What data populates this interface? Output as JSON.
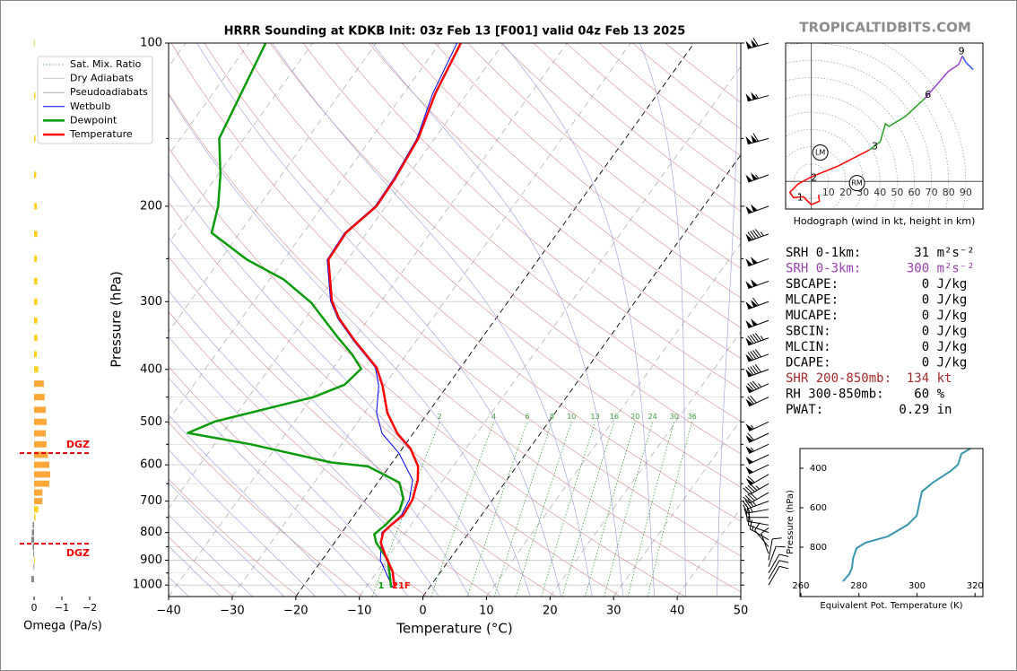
{
  "watermark": "TROPICALTIDBITS.COM",
  "stats": {
    "rows": [
      {
        "text": "SRH 0-1km:       31 m²s⁻²",
        "color": "#000000"
      },
      {
        "text": "SRH 0-3km:      300 m²s⁻²",
        "color": "#9b3fb0"
      },
      {
        "text": "SBCAPE:           0 J/kg",
        "color": "#000000"
      },
      {
        "text": "MLCAPE:           0 J/kg",
        "color": "#000000"
      },
      {
        "text": "MUCAPE:           0 J/kg",
        "color": "#000000"
      },
      {
        "text": "SBCIN:            0 J/kg",
        "color": "#000000"
      },
      {
        "text": "MLCIN:            0 J/kg",
        "color": "#000000"
      },
      {
        "text": "DCAPE:            0 J/kg",
        "color": "#000000"
      },
      {
        "text": "SHR 200-850mb:  134 kt",
        "color": "#a52a2a"
      },
      {
        "text": "RH 300-850mb:    60 %",
        "color": "#000000"
      },
      {
        "text": "PWAT:          0.29 in",
        "color": "#000000"
      }
    ]
  },
  "chart_data": [
    {
      "type": "skewt",
      "title": "HRRR Sounding at KDKB Init: 03z Feb 13 [F001] valid 04z Feb 13 2025",
      "xlabel": "Temperature (°C)",
      "ylabel": "Pressure (hPa)",
      "log_y": true,
      "xlim": [
        -40,
        50
      ],
      "ylim": [
        100,
        1050
      ],
      "xticks": [
        {
          "value": -40,
          "label": "−40"
        },
        {
          "value": -30,
          "label": "−30"
        },
        {
          "value": -20,
          "label": "−20"
        },
        {
          "value": -10,
          "label": "−10"
        },
        0,
        10,
        20,
        30,
        40,
        50
      ],
      "yticks": [
        100,
        200,
        300,
        400,
        500,
        600,
        700,
        800,
        900,
        1000
      ],
      "minor_yticks": [
        150,
        250,
        350,
        450,
        550,
        650,
        750,
        850,
        950
      ],
      "grid": true,
      "isotherms": {
        "values": [
          -110,
          -100,
          -90,
          -80,
          -70,
          -60,
          -50,
          -40,
          -30,
          -20,
          -10,
          0,
          10,
          20,
          30,
          40,
          50
        ],
        "highlight": [
          -20,
          0
        ],
        "color": "#a8a8a8",
        "highlight_color": "#000000"
      },
      "reference_lines": [
        {
          "name": "Sat. Mix. Ratio",
          "kind": "mixing_ratio",
          "color": "#3aa03a",
          "values": [
            2,
            4,
            6,
            8,
            10,
            13,
            16,
            20,
            24,
            30,
            36
          ],
          "top_pressure": 500
        },
        {
          "name": "Dry Adiabats",
          "kind": "dry",
          "color": "#d98c8c",
          "legend_color": "#bbbbbb",
          "values": [
            230,
            240,
            250,
            260,
            270,
            280,
            290,
            300,
            310,
            320,
            330,
            340,
            350,
            360,
            370,
            380,
            390,
            400,
            410,
            420,
            430,
            440,
            450,
            460,
            470,
            480
          ]
        },
        {
          "name": "Pseudoadiabats",
          "kind": "moist",
          "color": "#9a9ae0",
          "legend_color": "#999999",
          "values": [
            -40,
            -35,
            -30,
            -25,
            -20,
            -15,
            -10,
            -5,
            0,
            5,
            10,
            15,
            20,
            25,
            30,
            35,
            40,
            45
          ]
        }
      ],
      "series": [
        {
          "name": "Wetbulb",
          "color": "#0000ff",
          "width": 1,
          "pressure": [
            1010,
            900,
            800,
            743,
            696,
            640,
            571,
            525,
            481,
            429,
            397,
            354,
            322,
            299,
            251,
            224,
            200,
            178,
            150,
            124,
            100
          ],
          "values": [
            -5.8,
            -10.8,
            -13.7,
            -12.6,
            -13.1,
            -14.8,
            -20.0,
            -24.9,
            -28.1,
            -30.8,
            -33.4,
            -39.9,
            -44.9,
            -48.0,
            -53.2,
            -53.5,
            -51.7,
            -51.9,
            -52.8,
            -55.4,
            -57.3
          ]
        },
        {
          "name": "Dewpoint",
          "color": "#0a9a0a",
          "width": 2.5,
          "pressure": [
            1011,
            900,
            836,
            806,
            774,
            729,
            692,
            647,
            604,
            594,
            550,
            524,
            499,
            450,
            427,
            399,
            375,
            350,
            301,
            273,
            251,
            224,
            200,
            175,
            150,
            100
          ],
          "values": [
            -6.0,
            -9.6,
            -13.4,
            -14.7,
            -14.0,
            -13.4,
            -14.2,
            -16.6,
            -23.4,
            -29.6,
            -44.3,
            -55.5,
            -52.5,
            -39.8,
            -36.3,
            -35.5,
            -38.6,
            -42.6,
            -50.9,
            -57.8,
            -65.8,
            -74.4,
            -76.4,
            -79.6,
            -83.9,
            -87.4
          ]
        },
        {
          "name": "Temperature",
          "color": "#ff0000",
          "width": 2.5,
          "pressure": [
            1010,
            944,
            885,
            836,
            800,
            774,
            743,
            696,
            640,
            604,
            560,
            525,
            481,
            429,
            397,
            354,
            322,
            299,
            251,
            224,
            200,
            178,
            150,
            124,
            100
          ],
          "values": [
            -5.5,
            -7.6,
            -10.4,
            -12.7,
            -13.5,
            -13.1,
            -12.3,
            -12.6,
            -14.0,
            -15.5,
            -18.7,
            -22.5,
            -26.4,
            -30.2,
            -33.2,
            -39.7,
            -44.7,
            -47.8,
            -53.0,
            -53.3,
            -51.5,
            -51.7,
            -52.6,
            -55.0,
            -56.7
          ]
        }
      ],
      "legend_position": "upper left",
      "surface_labels": [
        {
          "text": "1",
          "color": "#0a9a0a"
        },
        {
          "text": "21F",
          "color": "#ff0000"
        }
      ],
      "wind_barbs": {
        "pressure": [
          100,
          125,
          150,
          175,
          200,
          225,
          250,
          275,
          300,
          325,
          350,
          375,
          400,
          425,
          450,
          500,
          525,
          550,
          575,
          600,
          625,
          650,
          675,
          700,
          725,
          750,
          775,
          800,
          825,
          850,
          875,
          900,
          925,
          950,
          975,
          1000
        ],
        "speed": [
          110,
          105,
          110,
          105,
          100,
          95,
          100,
          100,
          110,
          100,
          95,
          90,
          90,
          85,
          70,
          55,
          60,
          55,
          50,
          50,
          60,
          45,
          40,
          35,
          25,
          20,
          20,
          15,
          15,
          10,
          10,
          10,
          10,
          10,
          10,
          10
        ],
        "direction": [
          255,
          255,
          255,
          250,
          250,
          250,
          250,
          250,
          250,
          250,
          250,
          250,
          250,
          245,
          245,
          245,
          245,
          245,
          245,
          245,
          240,
          240,
          240,
          250,
          260,
          270,
          280,
          290,
          300,
          320,
          340,
          10,
          20,
          30,
          30,
          30
        ]
      }
    },
    {
      "type": "omega_bars",
      "xlabel": "Omega (Pa/s)",
      "xlim": [
        0.3,
        -2
      ],
      "ylim": [
        100,
        1050
      ],
      "xticks": [
        0,
        {
          "value": -1,
          "label": "−1"
        },
        {
          "value": -2,
          "label": "−2"
        }
      ],
      "pressure": [
        100,
        125,
        150,
        175,
        200,
        225,
        250,
        275,
        300,
        325,
        350,
        375,
        400,
        425,
        450,
        475,
        500,
        525,
        550,
        575,
        600,
        625,
        650,
        675,
        700,
        725,
        750,
        775,
        800,
        825,
        850,
        875,
        900,
        925,
        975
      ],
      "values": [
        -0.02,
        -0.05,
        -0.05,
        -0.08,
        -0.1,
        -0.12,
        -0.1,
        -0.12,
        -0.12,
        -0.12,
        -0.12,
        -0.1,
        -0.15,
        -0.35,
        -0.38,
        -0.42,
        -0.45,
        -0.42,
        -0.45,
        -0.5,
        -0.55,
        -0.58,
        -0.55,
        -0.3,
        -0.3,
        -0.15,
        -0.05,
        0.05,
        0.08,
        0.1,
        0.05,
        0.03,
        -0.03,
        0.02,
        0.1
      ],
      "colors": [
        "#ffd21f",
        "#ffd21f",
        "#ffd21f",
        "#ffd21f",
        "#ffd21f",
        "#ffd21f",
        "#ffd21f",
        "#ffd21f",
        "#ffd21f",
        "#ffd21f",
        "#ffd21f",
        "#ffd21f",
        "#ffd21f",
        "#ffa83a",
        "#ffa83a",
        "#ffa83a",
        "#ffa83a",
        "#ffa83a",
        "#ffa83a",
        "#ffa83a",
        "#ffa83a",
        "#ffa83a",
        "#ffa83a",
        "#ffa83a",
        "#ffa83a",
        "#ffd21f",
        "#ffd21f",
        "#888888",
        "#888888",
        "#888888",
        "#888888",
        "#888888",
        "#ffd21f",
        "#888888",
        "#888888"
      ],
      "dgz": {
        "label": "DGZ",
        "pressure": [
          571,
          839
        ],
        "color": "#ee0000"
      }
    },
    {
      "type": "hodograph",
      "caption": "Hodograph (wind in kt, height in km)",
      "xlim": [
        -15,
        100
      ],
      "ylim": [
        -16,
        80
      ],
      "rings": [
        10,
        20,
        30,
        40,
        50,
        60,
        70,
        80,
        90
      ],
      "segments": [
        {
          "color": "#ff0000",
          "u": [
            4.2,
            4.7,
            0,
            -4.7,
            -10.4,
            -12.5,
            -7.8,
            0,
            15.6,
            33.9
          ],
          "v": [
            -7.8,
            -11.5,
            -13.5,
            -8.9,
            -9.4,
            -6.3,
            -1.6,
            2.6,
            8.9,
            18.2
          ]
        },
        {
          "color": "#22a022",
          "u": [
            33.9,
            40.1,
            43.2,
            45.3,
            54.7,
            66.1
          ],
          "v": [
            18.2,
            22.9,
            33.3,
            31.8,
            37.5,
            47.9
          ]
        },
        {
          "color": "#9b3fd0",
          "u": [
            66.1,
            72.9,
            79.7,
            85.9,
            88.0
          ],
          "v": [
            47.9,
            55.7,
            63.5,
            67.7,
            72.4
          ]
        },
        {
          "color": "#3355ee",
          "u": [
            88.0,
            90.1,
            94.3
          ],
          "v": [
            72.4,
            68.8,
            64.6
          ]
        }
      ],
      "height_labels": [
        {
          "label": "1",
          "u": -6.5,
          "v": -9.5
        },
        {
          "label": "2",
          "u": 1.5,
          "v": 2.0
        },
        {
          "label": "3",
          "u": 37,
          "v": 20
        },
        {
          "label": "6",
          "u": 68,
          "v": 50
        },
        {
          "label": "9",
          "u": 87.5,
          "v": 75
        }
      ],
      "markers": [
        {
          "label": "LM",
          "u": 5.2,
          "v": 16.7
        },
        {
          "label": "RM",
          "u": 26.6,
          "v": -1.0
        }
      ]
    },
    {
      "type": "line",
      "xlabel": "Equivalent Pot. Temperature (K)",
      "ylabel": "Pressure (hPa)",
      "xlim": [
        259.7,
        322.7
      ],
      "ylim": [
        300,
        1050
      ],
      "xticks": [
        260,
        280,
        300,
        320
      ],
      "yticks": [
        400,
        600,
        800
      ],
      "series": [
        {
          "color": "#3a96b0",
          "pressure": [
            300,
            327,
            382,
            414,
            473,
            518,
            641,
            686,
            745,
            777,
            805,
            855,
            905,
            936,
            973
          ],
          "values": [
            318.4,
            315.3,
            314.1,
            311.6,
            305.4,
            301.7,
            299.9,
            296.8,
            290.0,
            282.3,
            279.2,
            278.0,
            277.6,
            276.7,
            274.5
          ]
        }
      ]
    }
  ]
}
